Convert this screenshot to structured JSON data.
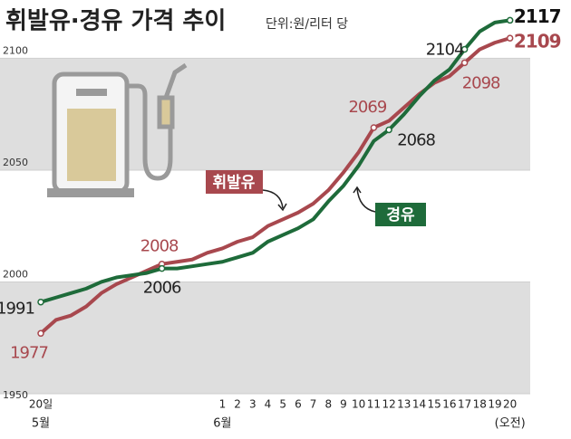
{
  "chart_data": {
    "type": "line",
    "title": "휘발유·경유 가격 추이",
    "subtitle": "단위:원/리터 당",
    "categories": [
      "20일",
      null,
      null,
      null,
      null,
      null,
      null,
      null,
      null,
      null,
      null,
      null,
      "1",
      "2",
      "3",
      "4",
      "5",
      "6",
      "7",
      "8",
      "9",
      "10",
      "11",
      "12",
      "13",
      "14",
      "15",
      "16",
      "17",
      "18",
      "19",
      "20"
    ],
    "month_labels": [
      "5월",
      "6월",
      "(오전)"
    ],
    "ylim": [
      1950,
      2120
    ],
    "yticks": [
      1950,
      2000,
      2050,
      2100
    ],
    "banded_background": true,
    "series": [
      {
        "name": "휘발유",
        "color": "#a8484e",
        "labeled": [
          0,
          8,
          22,
          28,
          31
        ],
        "values": [
          1977,
          1983,
          1985,
          1989,
          1995,
          1999,
          2002,
          2005,
          2008,
          2009,
          2010,
          2013,
          2015,
          2018,
          2020,
          2025,
          2028,
          2031,
          2035,
          2041,
          2049,
          2058,
          2069,
          2072,
          2078,
          2084,
          2089,
          2092,
          2098,
          2104,
          2107,
          2109
        ]
      },
      {
        "name": "경유",
        "color": "#1e6b3a",
        "labeled": [
          0,
          8,
          23,
          28,
          31
        ],
        "values": [
          1991,
          1993,
          1995,
          1997,
          2000,
          2002,
          2003,
          2004,
          2006,
          2006,
          2007,
          2008,
          2009,
          2011,
          2013,
          2018,
          2021,
          2024,
          2028,
          2036,
          2043,
          2052,
          2063,
          2068,
          2075,
          2083,
          2090,
          2095,
          2104,
          2112,
          2116,
          2117
        ]
      }
    ]
  }
}
